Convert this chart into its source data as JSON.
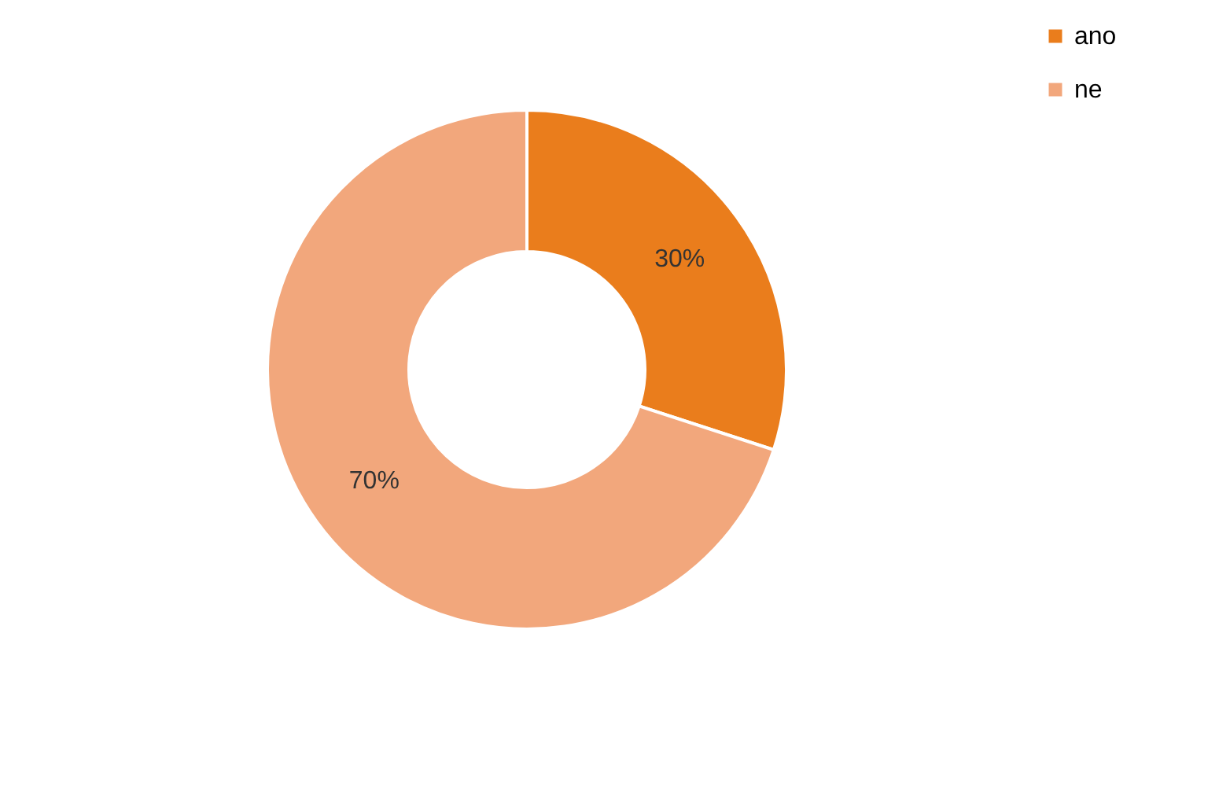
{
  "chart_data": {
    "type": "donut",
    "categories": [
      "ano",
      "ne"
    ],
    "values": [
      30,
      70
    ],
    "colors": [
      "#ea7d1c",
      "#f2a77c"
    ],
    "value_labels": [
      "30%",
      "70%"
    ],
    "legend": "right"
  }
}
